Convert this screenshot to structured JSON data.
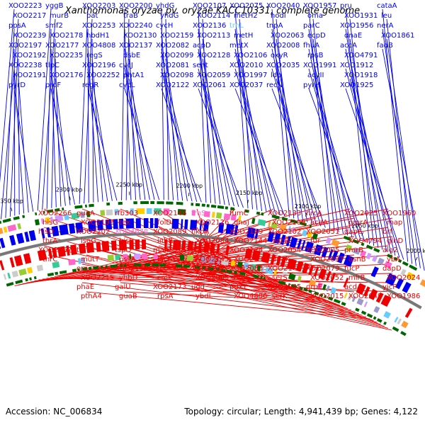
{
  "title": "Xanthomonas oryzae pv. oryzae KACC10331, complete genome",
  "accession": "Accession: NC_006834",
  "topology": "Topology: circular; Length: 4,941,439 bp; Genes: 4,122",
  "colors": {
    "forward": "#0000ee",
    "reverse": "#ee0000",
    "rna_forward": "#66ccff",
    "rna_reverse": "#ff66cc",
    "backbone": "#888888"
  },
  "kbp_ticks": [
    "2000 kbp",
    "2050 kbp",
    "2100 kbp",
    "2150 kbp",
    "2200 kbp",
    "2250 kbp",
    "2300 kbp",
    "2350 kbp"
  ],
  "forward_genes": [
    "XOO2223",
    "XOO2217",
    "ppsA",
    "XOO2239",
    "XOO2197",
    "XOO2192",
    "XOO2238",
    "XOO2191",
    "pyrD",
    "yggB",
    "murB",
    "smf2",
    "XOO2178",
    "XOO2177",
    "XOO2235",
    "tlpC",
    "XOO2176",
    "proF",
    "XOO2203",
    "pat",
    "XOO2253",
    "hbdH1",
    "XOO4808",
    "regS",
    "XOO2196",
    "XOO2252",
    "regR",
    "XOO2200",
    "traB",
    "XOO2240",
    "XOO2130",
    "XOO2137",
    "dsbE",
    "cycJ",
    "phtA1",
    "cycL",
    "yhdG",
    "yhdG",
    "cycH",
    "XOO2159",
    "XOO2082",
    "XOO2099",
    "XOO2081",
    "XOO2098",
    "XOO2122",
    "XOO2107",
    "XOO2114",
    "XOO2136",
    "XOO2113",
    "acpD",
    "XOO2128",
    "sent",
    "XOO2059",
    "XOO2061",
    "XOO2075",
    "metH2",
    "trnL",
    "metH",
    "metX",
    "XOO2106",
    "XOO2010",
    "XOO1997",
    "XOO2037",
    "XOO2040",
    "nodI",
    "tnpA",
    "XOO2063",
    "XOO2008",
    "oxyR",
    "XOO2035",
    "ldp",
    "recN",
    "XOO1957",
    "oma",
    "parC",
    "ecpD",
    "fhuA",
    "rpsB",
    "XOO1991",
    "acyII",
    "pyrH",
    "pru",
    "XOO1931",
    "XOO1956",
    "dnaE",
    "accA",
    "XOO4791",
    "XOO1912",
    "XOO1918",
    "XOO1925",
    "cataA",
    "leu",
    "nerA",
    "XOO1861",
    "fadB"
  ],
  "reverse_genes": [
    "XOO1960",
    "map",
    "brf",
    "glnD",
    "alg2",
    "ybA",
    "dapD",
    "XOO2024",
    "yjcP",
    "XOO1986",
    "XOO2025",
    "pmrA",
    "dapE",
    "XOO4794",
    "pmrB",
    "asnB",
    "fucP",
    "mlrB",
    "acdA",
    "XOO2049",
    "hrcA",
    "acdA",
    "XOO2051",
    "fur",
    "XOO2005",
    "XOO2097",
    "XOO2079",
    "XOO2052",
    "grpE",
    "XOO2015",
    "XOO2133",
    "XOO2109",
    "XOO2102",
    "vacB",
    "XOO2054",
    "dnaK",
    "XOO2142",
    "serS",
    "XOO2085",
    "scrK",
    "fumC",
    "dnaJ",
    "XOO2169",
    "XOO2144",
    "XOO2124",
    "XOO2094",
    "XOO2083",
    "btuE",
    "pdxY",
    "XOO4806",
    "trnS",
    "XOO2126",
    "flkpA",
    "XOO2084",
    "tyrA",
    "XOO2145",
    "XOO2129",
    "XOO2095",
    "ugd",
    "ybdL",
    "XOO2146",
    "folD",
    "XOO2089",
    "inhB",
    "malE",
    "lacF",
    "lacG",
    "cmk",
    "XOO2173",
    "rpsA",
    "rfb303",
    "tex",
    "XOO4678",
    "hisI",
    "tspO",
    "pssA",
    "XOO2199",
    "yhbD",
    "galU",
    "guaB",
    "guaA",
    "XOO2198",
    "XOO2202",
    "isgG",
    "thrB",
    "mutT",
    "orn",
    "XOO2215",
    "phaE",
    "pthA4",
    "XOO2266",
    "hisG",
    "hisD",
    "thrA",
    "XOO2267",
    "thrC"
  ]
}
